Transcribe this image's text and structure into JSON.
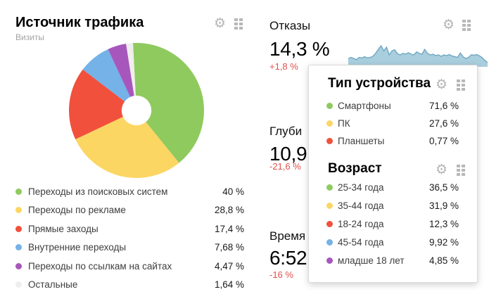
{
  "colors": {
    "green": "#8fca5f",
    "yellow": "#fcd663",
    "red": "#f1503c",
    "blue": "#74b2e8",
    "purple": "#a757bc",
    "gray": "#efeeec",
    "change_negative": "#e0504c",
    "spark_fill": "#a9cedd",
    "spark_line": "#6fa8c2"
  },
  "icons": {
    "gear": "⚙"
  },
  "traffic_widget": {
    "title": "Источник трафика",
    "subtitle": "Визиты",
    "legend": [
      {
        "label": "Переходы из поисковых систем",
        "value": "40 %",
        "color": "#8fca5f"
      },
      {
        "label": "Переходы по рекламе",
        "value": "28,8 %",
        "color": "#fcd663"
      },
      {
        "label": "Прямые заходы",
        "value": "17,4 %",
        "color": "#f1503c"
      },
      {
        "label": "Внутренние переходы",
        "value": "7,68 %",
        "color": "#74b2e8"
      },
      {
        "label": "Переходы по ссылкам на сайтах",
        "value": "4,47 %",
        "color": "#a757bc"
      },
      {
        "label": "Остальные",
        "value": "1,64 %",
        "color": "#efeeec"
      }
    ]
  },
  "metric_widgets": {
    "bounces": {
      "title": "Отказы",
      "value": "14,3 %",
      "change": "+1,8 %"
    },
    "depth": {
      "title": "Глуби",
      "value": "10,9",
      "change": "-21,6 %"
    },
    "time": {
      "title": "Время",
      "value": "6:52",
      "change": "-16 %"
    }
  },
  "overlay": {
    "device_panel": {
      "title": "Тип устройства",
      "rows": [
        {
          "label": "Смартфоны",
          "value": "71,6 %",
          "color": "#8fca5f"
        },
        {
          "label": "ПК",
          "value": "27,6 %",
          "color": "#fcd663"
        },
        {
          "label": "Планшеты",
          "value": "0,77 %",
          "color": "#f1503c"
        }
      ]
    },
    "age_panel": {
      "title": "Возраст",
      "rows": [
        {
          "label": "25-34 года",
          "value": "36,5 %",
          "color": "#8fca5f"
        },
        {
          "label": "35-44 года",
          "value": "31,9 %",
          "color": "#fcd663"
        },
        {
          "label": "18-24 года",
          "value": "12,3 %",
          "color": "#f1503c"
        },
        {
          "label": "45-54 года",
          "value": "9,92 %",
          "color": "#74b2e8"
        },
        {
          "label": "младше 18 лет",
          "value": "4,85 %",
          "color": "#a757bc"
        }
      ]
    }
  },
  "chart_data": [
    {
      "id": "traffic-sources-donut",
      "type": "pie",
      "title": "Источник трафика",
      "metric": "Визиты",
      "categories": [
        "Переходы из поисковых систем",
        "Переходы по рекламе",
        "Прямые заходы",
        "Внутренние переходы",
        "Переходы по ссылкам на сайтах",
        "Остальные"
      ],
      "values": [
        40,
        28.8,
        17.4,
        7.68,
        4.47,
        1.64
      ],
      "unit": "%",
      "colors": [
        "#8fca5f",
        "#fcd663",
        "#f1503c",
        "#74b2e8",
        "#a757bc",
        "#efeeec"
      ],
      "donut": true,
      "inner_radius_ratio": 0.22,
      "start_angle_deg": -3,
      "direction": "clockwise",
      "legend_position": "bottom"
    },
    {
      "id": "bounces-sparkline",
      "type": "area",
      "title": "Отказы",
      "current_value_percent": 14.3,
      "change_percent": 1.8,
      "axes": "none",
      "y_relative_heights": [
        0.3,
        0.36,
        0.3,
        0.24,
        0.36,
        0.33,
        0.4,
        0.33,
        0.36,
        0.42,
        0.58,
        0.8,
        1.0,
        0.72,
        0.92,
        0.5,
        0.72,
        0.78,
        0.56,
        0.5,
        0.58,
        0.54,
        0.62,
        0.54,
        0.5,
        0.66,
        0.58,
        0.54,
        0.8,
        0.58,
        0.5,
        0.54,
        0.46,
        0.5,
        0.42,
        0.5,
        0.46,
        0.52,
        0.44,
        0.4,
        0.36,
        0.6,
        0.4,
        0.3,
        0.36,
        0.5,
        0.48,
        0.52,
        0.45,
        0.35,
        0.2,
        0.08
      ]
    }
  ]
}
